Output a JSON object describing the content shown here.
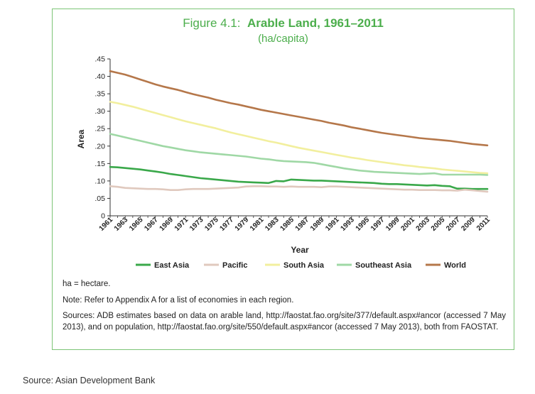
{
  "figure": {
    "title_prefix": "Figure 4.1:",
    "title_main": "Arable Land, 1961–2011",
    "subtitle": "(ha/capita)"
  },
  "notes": {
    "ha": "ha = hectare.",
    "appendix": "Note: Refer to Appendix A for a list of economies in each region.",
    "sources": "Sources: ADB estimates based on data on arable land, http://faostat.fao.org/site/377/default.aspx#ancor (accessed 7 May 2013), and on population, http://faostat.fao.org/site/550/default.aspx#ancor (accessed 7 May 2013), both from FAOSTAT."
  },
  "page_source": "Source: Asian Development Bank",
  "chart_data": {
    "type": "line",
    "xlabel": "Year",
    "ylabel": "Area",
    "ylim": [
      0,
      0.45
    ],
    "y_ticks": [
      0,
      0.05,
      0.1,
      0.15,
      0.2,
      0.25,
      0.3,
      0.35,
      0.4,
      0.45
    ],
    "y_tick_labels": [
      "0",
      ".05",
      ".10",
      ".15",
      ".20",
      ".25",
      ".30",
      ".35",
      ".40",
      ".45"
    ],
    "x": [
      1961,
      1962,
      1963,
      1964,
      1965,
      1966,
      1967,
      1968,
      1969,
      1970,
      1971,
      1972,
      1973,
      1974,
      1975,
      1976,
      1977,
      1978,
      1979,
      1980,
      1981,
      1982,
      1983,
      1984,
      1985,
      1986,
      1987,
      1988,
      1989,
      1990,
      1991,
      1992,
      1993,
      1994,
      1995,
      1996,
      1997,
      1998,
      1999,
      2000,
      2001,
      2002,
      2003,
      2004,
      2005,
      2006,
      2007,
      2008,
      2009,
      2010,
      2011
    ],
    "x_tick_labels": [
      "1961",
      "1963",
      "1965",
      "1967",
      "1969",
      "1971",
      "1973",
      "1975",
      "1977",
      "1979",
      "1981",
      "1983",
      "1985",
      "1987",
      "1989",
      "1991",
      "1993",
      "1995",
      "1997",
      "1999",
      "2001",
      "2003",
      "2005",
      "2007",
      "2009",
      "2011"
    ],
    "grid": false,
    "legend_position": "bottom",
    "series": [
      {
        "name": "East Asia",
        "color": "#3aa84a",
        "values": [
          0.14,
          0.139,
          0.137,
          0.135,
          0.133,
          0.13,
          0.127,
          0.124,
          0.12,
          0.117,
          0.114,
          0.111,
          0.108,
          0.106,
          0.104,
          0.102,
          0.1,
          0.098,
          0.097,
          0.096,
          0.095,
          0.094,
          0.1,
          0.099,
          0.104,
          0.103,
          0.102,
          0.101,
          0.101,
          0.1,
          0.099,
          0.098,
          0.097,
          0.096,
          0.095,
          0.094,
          0.092,
          0.091,
          0.091,
          0.09,
          0.089,
          0.088,
          0.087,
          0.088,
          0.086,
          0.085,
          0.078,
          0.078,
          0.077,
          0.077,
          0.077
        ]
      },
      {
        "name": "Pacific",
        "color": "#e0c9be",
        "values": [
          0.085,
          0.083,
          0.08,
          0.079,
          0.078,
          0.077,
          0.077,
          0.076,
          0.074,
          0.074,
          0.076,
          0.077,
          0.077,
          0.077,
          0.078,
          0.079,
          0.08,
          0.081,
          0.084,
          0.085,
          0.085,
          0.084,
          0.084,
          0.083,
          0.084,
          0.083,
          0.083,
          0.083,
          0.082,
          0.084,
          0.084,
          0.083,
          0.082,
          0.081,
          0.08,
          0.079,
          0.078,
          0.077,
          0.076,
          0.075,
          0.075,
          0.074,
          0.074,
          0.074,
          0.073,
          0.073,
          0.072,
          0.075,
          0.073,
          0.071,
          0.069
        ]
      },
      {
        "name": "South Asia",
        "color": "#f2ef9e",
        "values": [
          0.327,
          0.323,
          0.318,
          0.313,
          0.307,
          0.301,
          0.295,
          0.289,
          0.283,
          0.277,
          0.271,
          0.266,
          0.261,
          0.256,
          0.251,
          0.245,
          0.239,
          0.234,
          0.229,
          0.224,
          0.219,
          0.214,
          0.21,
          0.205,
          0.2,
          0.195,
          0.191,
          0.187,
          0.183,
          0.179,
          0.175,
          0.171,
          0.167,
          0.164,
          0.16,
          0.157,
          0.154,
          0.151,
          0.148,
          0.145,
          0.143,
          0.14,
          0.138,
          0.136,
          0.133,
          0.131,
          0.129,
          0.127,
          0.125,
          0.123,
          0.122
        ]
      },
      {
        "name": "Southeast Asia",
        "color": "#9fd8a5",
        "values": [
          0.235,
          0.23,
          0.225,
          0.22,
          0.215,
          0.21,
          0.205,
          0.2,
          0.196,
          0.192,
          0.188,
          0.185,
          0.182,
          0.18,
          0.178,
          0.176,
          0.174,
          0.172,
          0.17,
          0.167,
          0.164,
          0.162,
          0.159,
          0.157,
          0.156,
          0.155,
          0.154,
          0.152,
          0.148,
          0.144,
          0.14,
          0.136,
          0.133,
          0.13,
          0.128,
          0.126,
          0.125,
          0.124,
          0.123,
          0.122,
          0.121,
          0.12,
          0.121,
          0.122,
          0.118,
          0.118,
          0.118,
          0.118,
          0.118,
          0.118,
          0.117
        ]
      },
      {
        "name": "World",
        "color": "#b5774a",
        "values": [
          0.415,
          0.41,
          0.405,
          0.398,
          0.391,
          0.384,
          0.377,
          0.371,
          0.366,
          0.361,
          0.355,
          0.349,
          0.344,
          0.339,
          0.333,
          0.328,
          0.323,
          0.319,
          0.314,
          0.309,
          0.304,
          0.3,
          0.296,
          0.292,
          0.288,
          0.284,
          0.28,
          0.276,
          0.272,
          0.267,
          0.263,
          0.259,
          0.254,
          0.25,
          0.246,
          0.242,
          0.238,
          0.235,
          0.232,
          0.229,
          0.226,
          0.223,
          0.221,
          0.219,
          0.217,
          0.215,
          0.212,
          0.209,
          0.206,
          0.204,
          0.202
        ]
      }
    ]
  }
}
